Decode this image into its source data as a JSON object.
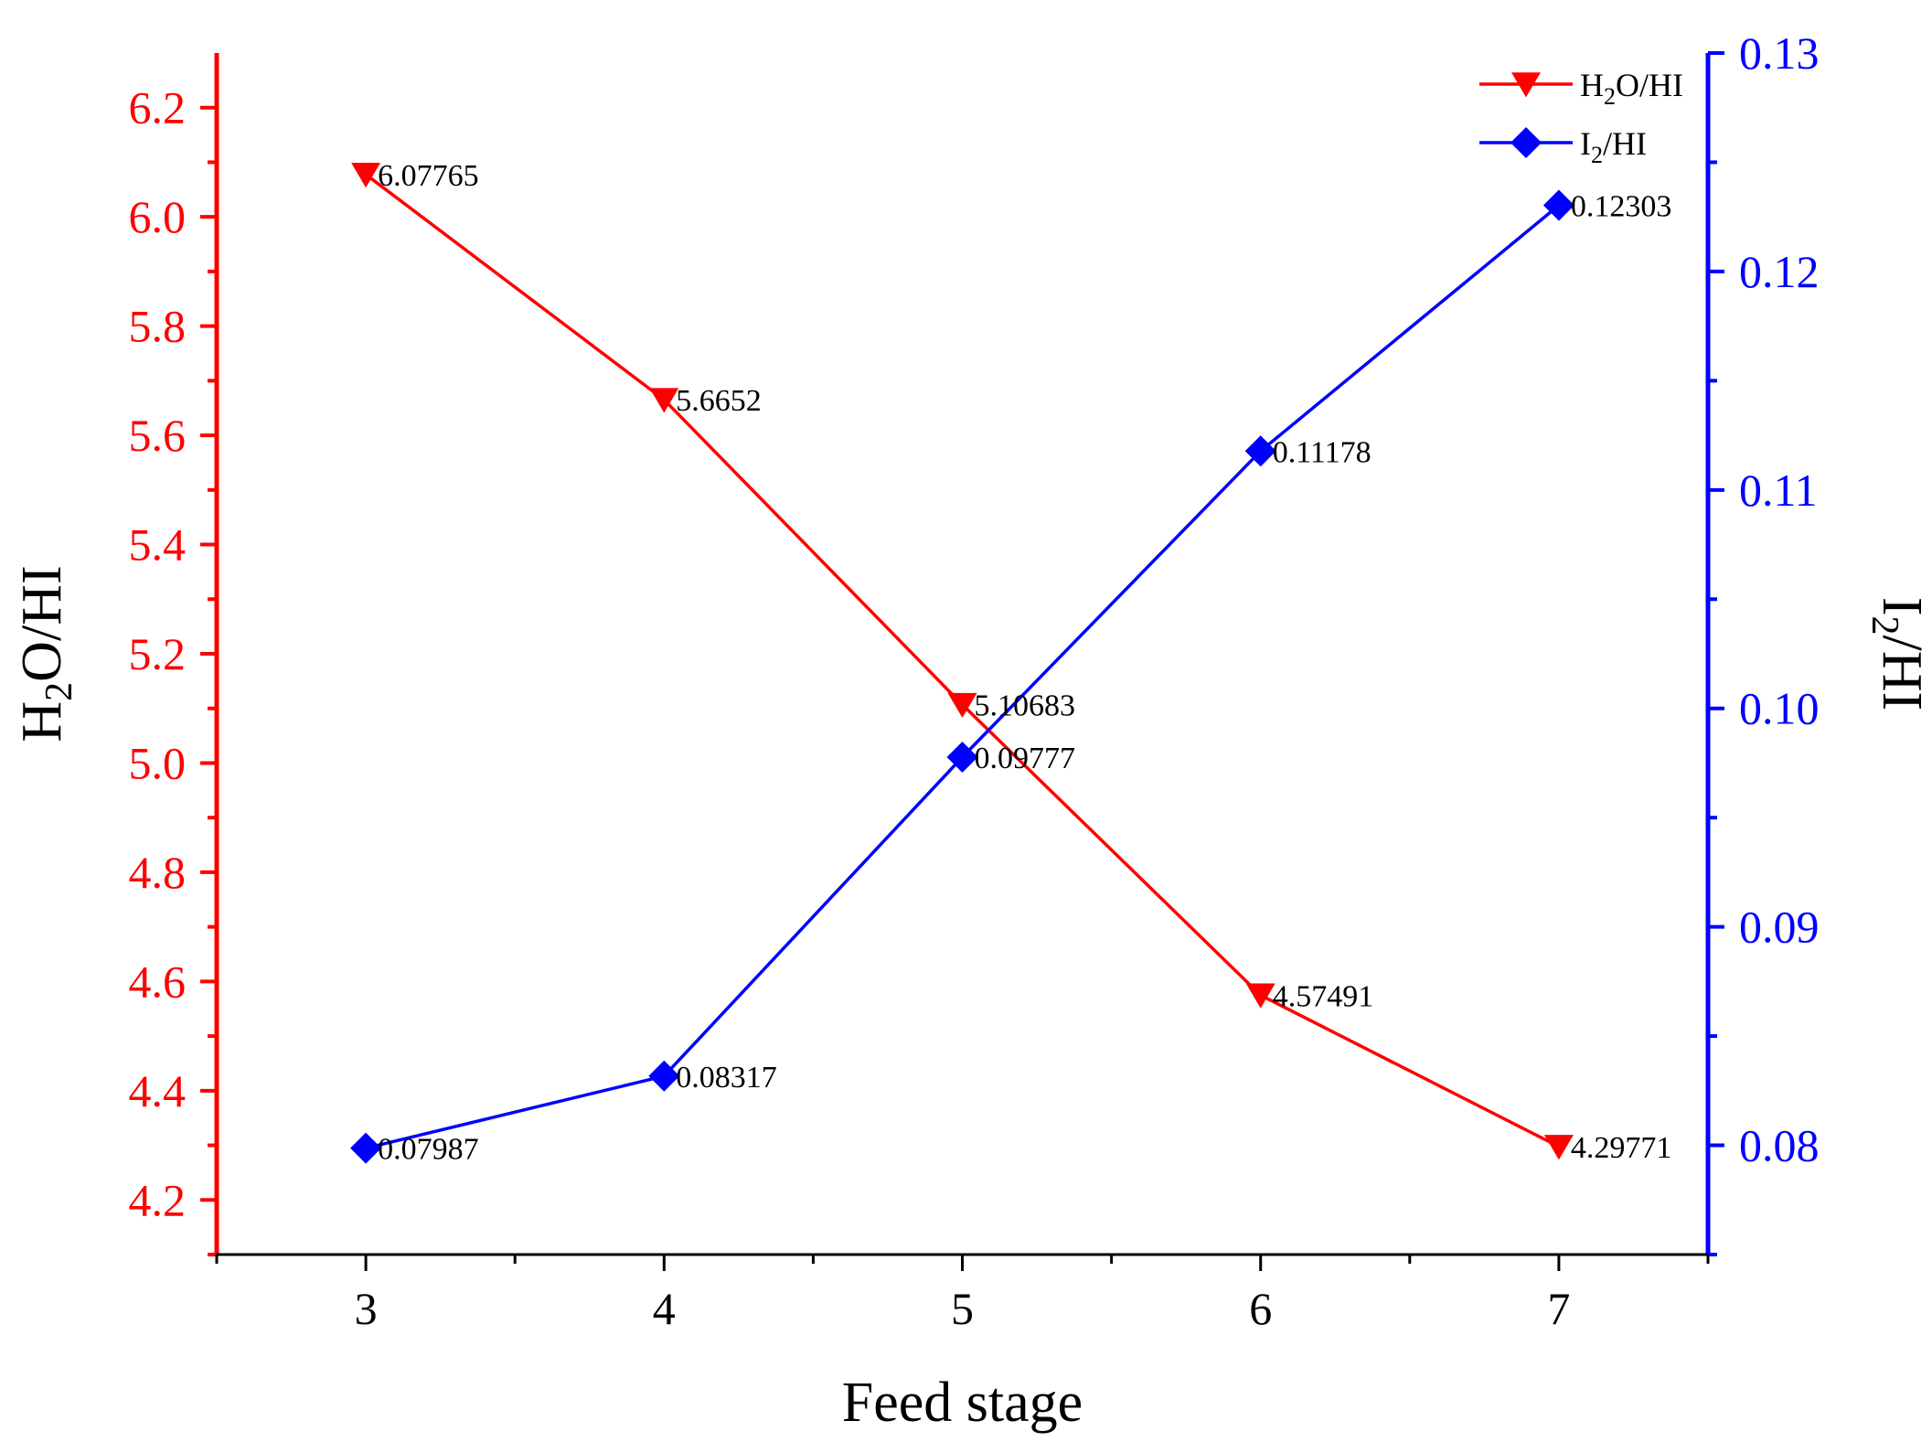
{
  "chart_data": {
    "type": "line",
    "title": "",
    "xlabel": "Feed stage",
    "x": [
      3,
      4,
      5,
      6,
      7
    ],
    "x_ticks": [
      3,
      4,
      5,
      6,
      7
    ],
    "xlim": [
      2.5,
      7.5
    ],
    "left_axis": {
      "label_main": "H",
      "label_sub": "2",
      "label_rest": "O/HI",
      "ylim": [
        4.1,
        6.3
      ],
      "ticks": [
        4.2,
        4.4,
        4.6,
        4.8,
        5.0,
        5.2,
        5.4,
        5.6,
        5.8,
        6.0,
        6.2
      ],
      "color": "#ff0000"
    },
    "right_axis": {
      "label_main": "I",
      "label_sub": "2",
      "label_rest": "/HI",
      "ylim": [
        0.075,
        0.13
      ],
      "ticks": [
        0.08,
        0.09,
        0.1,
        0.11,
        0.12,
        0.13
      ],
      "color": "#0000ff"
    },
    "series": [
      {
        "name": "H2O/HI",
        "legend_main": "H",
        "legend_sub": "2",
        "legend_rest": "O/HI",
        "axis": "left",
        "color": "#ff0000",
        "marker": "triangle-down",
        "values": [
          6.07765,
          5.6652,
          5.10683,
          4.57491,
          4.29771
        ],
        "labels": [
          "6.07765",
          "5.6652",
          "5.10683",
          "4.57491",
          "4.29771"
        ]
      },
      {
        "name": "I2/HI",
        "legend_main": "I",
        "legend_sub": "2",
        "legend_rest": "/HI",
        "axis": "right",
        "color": "#0000ff",
        "marker": "diamond",
        "values": [
          0.07987,
          0.08317,
          0.09777,
          0.11178,
          0.12303
        ],
        "labels": [
          "0.07987",
          "0.08317",
          "0.09777",
          "0.11178",
          "0.12303"
        ]
      }
    ],
    "legend_position": "top-right",
    "grid": false
  }
}
